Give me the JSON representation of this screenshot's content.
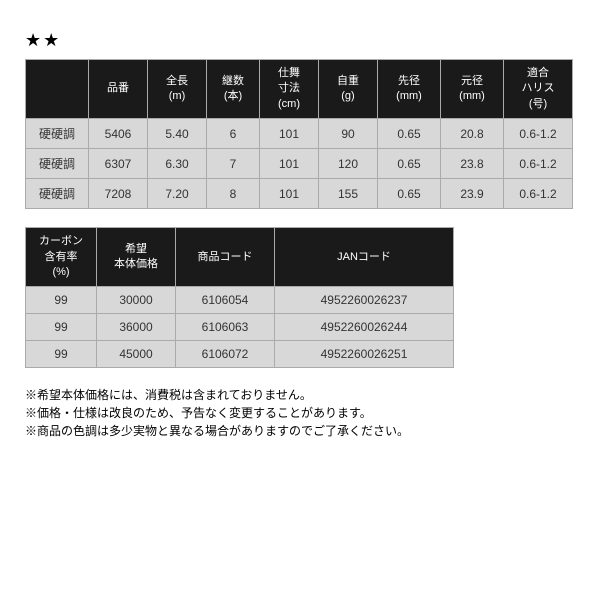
{
  "stars": "★★",
  "table1": {
    "headers": [
      "",
      "品番",
      "全長\n(m)",
      "継数\n(本)",
      "仕舞\n寸法\n(cm)",
      "自重\n(g)",
      "先径\n(mm)",
      "元径\n(mm)",
      "適合\nハリス\n(号)"
    ],
    "rows": [
      [
        "硬硬調",
        "5406",
        "5.40",
        "6",
        "101",
        "90",
        "0.65",
        "20.8",
        "0.6-1.2"
      ],
      [
        "硬硬調",
        "6307",
        "6.30",
        "7",
        "101",
        "120",
        "0.65",
        "23.8",
        "0.6-1.2"
      ],
      [
        "硬硬調",
        "7208",
        "7.20",
        "8",
        "101",
        "155",
        "0.65",
        "23.9",
        "0.6-1.2"
      ]
    ]
  },
  "table2": {
    "headers": [
      "カーボン\n含有率\n(%)",
      "希望\n本体価格",
      "商品コード",
      "JANコード"
    ],
    "rows": [
      [
        "99",
        "30000",
        "6106054",
        "4952260026237"
      ],
      [
        "99",
        "36000",
        "6106063",
        "4952260026244"
      ],
      [
        "99",
        "45000",
        "6106072",
        "4952260026251"
      ]
    ]
  },
  "notes": [
    "※希望本体価格には、消費税は含まれておりません。",
    "※価格・仕様は改良のため、予告なく変更することがあります。",
    "※商品の色調は多少実物と異なる場合がありますのでご了承ください。"
  ]
}
